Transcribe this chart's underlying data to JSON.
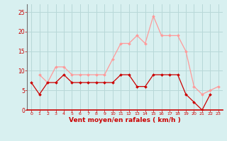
{
  "hours": [
    0,
    1,
    2,
    3,
    4,
    5,
    6,
    7,
    8,
    9,
    10,
    11,
    12,
    13,
    14,
    15,
    16,
    17,
    18,
    19,
    20,
    21,
    22,
    23
  ],
  "wind_avg": [
    7,
    4,
    7,
    7,
    9,
    7,
    7,
    7,
    7,
    7,
    7,
    9,
    9,
    6,
    6,
    9,
    9,
    9,
    9,
    4,
    2,
    0,
    4,
    null
  ],
  "wind_gust": [
    null,
    9,
    7,
    11,
    11,
    9,
    9,
    9,
    9,
    9,
    13,
    17,
    17,
    19,
    17,
    24,
    19,
    19,
    19,
    15,
    6,
    4,
    5,
    6
  ],
  "bg_color": "#d8f0f0",
  "grid_color": "#b8d8d8",
  "line_avg_color": "#cc0000",
  "line_gust_color": "#ff9999",
  "xlabel": "Vent moyen/en rafales ( km/h )",
  "xlabel_color": "#cc0000",
  "tick_color": "#cc0000",
  "spine_left_color": "#707070",
  "ylim": [
    0,
    27
  ],
  "yticks": [
    0,
    5,
    10,
    15,
    20,
    25
  ],
  "xlim": [
    -0.5,
    23.5
  ]
}
